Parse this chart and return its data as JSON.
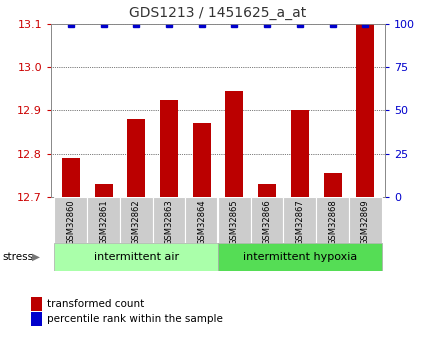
{
  "title": "GDS1213 / 1451625_a_at",
  "samples": [
    "GSM32860",
    "GSM32861",
    "GSM32862",
    "GSM32863",
    "GSM32864",
    "GSM32865",
    "GSM32866",
    "GSM32867",
    "GSM32868",
    "GSM32869"
  ],
  "transformed_counts": [
    12.79,
    12.73,
    12.88,
    12.925,
    12.87,
    12.945,
    12.73,
    12.9,
    12.755,
    13.15
  ],
  "percentile_ranks": [
    100,
    100,
    100,
    100,
    100,
    100,
    100,
    100,
    100,
    100
  ],
  "bar_color": "#bb0000",
  "percentile_color": "#0000cc",
  "ylim_left": [
    12.7,
    13.1
  ],
  "ylim_right": [
    0,
    100
  ],
  "yticks_left": [
    12.7,
    12.8,
    12.9,
    13.0,
    13.1
  ],
  "yticks_right": [
    0,
    25,
    50,
    75,
    100
  ],
  "group1_label": "intermittent air",
  "group2_label": "intermittent hypoxia",
  "group1_indices": [
    0,
    1,
    2,
    3,
    4
  ],
  "group2_indices": [
    5,
    6,
    7,
    8,
    9
  ],
  "stress_label": "stress",
  "legend_bar_label": "transformed count",
  "legend_pct_label": "percentile rank within the sample",
  "group1_color": "#aaffaa",
  "group2_color": "#55dd55",
  "tick_label_color_left": "#cc0000",
  "tick_label_color_right": "#0000cc",
  "bar_bottom": 12.7,
  "gray_color": "#cccccc",
  "title_color": "#333333"
}
